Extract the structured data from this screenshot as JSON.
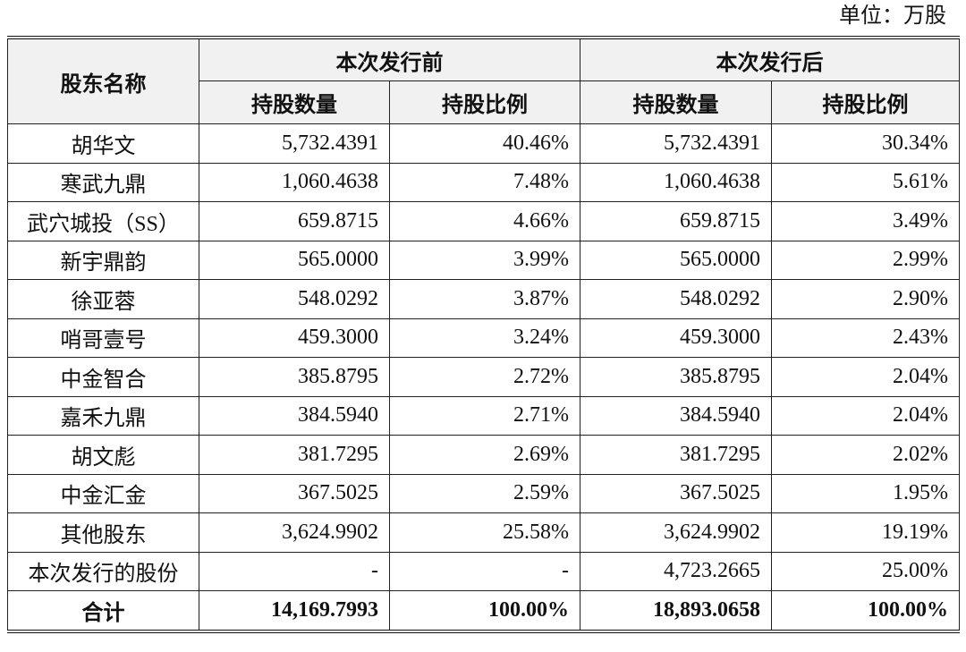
{
  "unit": "单位：万股",
  "table": {
    "header": {
      "name": "股东名称",
      "groups": [
        "本次发行前",
        "本次发行后"
      ],
      "subcolumns": [
        "持股数量",
        "持股比例",
        "持股数量",
        "持股比例"
      ]
    },
    "rows": [
      [
        "胡华文",
        "5,732.4391",
        "40.46%",
        "5,732.4391",
        "30.34%"
      ],
      [
        "寒武九鼎",
        "1,060.4638",
        "7.48%",
        "1,060.4638",
        "5.61%"
      ],
      [
        "武穴城投（SS）",
        "659.8715",
        "4.66%",
        "659.8715",
        "3.49%"
      ],
      [
        "新宇鼎韵",
        "565.0000",
        "3.99%",
        "565.0000",
        "2.99%"
      ],
      [
        "徐亚蓉",
        "548.0292",
        "3.87%",
        "548.0292",
        "2.90%"
      ],
      [
        "哨哥壹号",
        "459.3000",
        "3.24%",
        "459.3000",
        "2.43%"
      ],
      [
        "中金智合",
        "385.8795",
        "2.72%",
        "385.8795",
        "2.04%"
      ],
      [
        "嘉禾九鼎",
        "384.5940",
        "2.71%",
        "384.5940",
        "2.04%"
      ],
      [
        "胡文彪",
        "381.7295",
        "2.69%",
        "381.7295",
        "2.02%"
      ],
      [
        "中金汇金",
        "367.5025",
        "2.59%",
        "367.5025",
        "1.95%"
      ],
      [
        "其他股东",
        "3,624.9902",
        "25.58%",
        "3,624.9902",
        "19.19%"
      ],
      [
        "本次发行的股份",
        "-",
        "-",
        "4,723.2665",
        "25.00%"
      ]
    ],
    "total": [
      "合计",
      "14,169.7993",
      "100.00%",
      "18,893.0658",
      "100.00%"
    ]
  }
}
